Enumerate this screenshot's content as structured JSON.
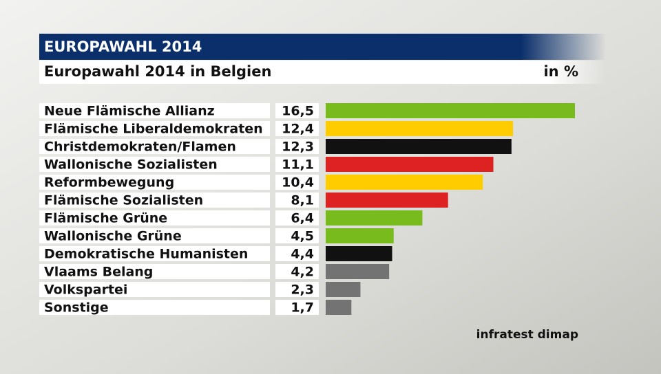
{
  "chart_data": {
    "type": "bar",
    "orientation": "horizontal",
    "header": "EUROPAWAHL 2014",
    "title": "Europawahl 2014 in Belgien",
    "unit": "in %",
    "source": "infratest dimap",
    "categories": [
      "Neue Flämische Allianz",
      "Flämische Liberaldemokraten",
      "Christdemokraten/Flamen",
      "Wallonische Sozialisten",
      "Reformbewegung",
      "Flämische Sozialisten",
      "Flämische Grüne",
      "Wallonische Grüne",
      "Demokratische Humanisten",
      "Vlaams Belang",
      "Volkspartei",
      "Sonstige"
    ],
    "values": [
      16.5,
      12.4,
      12.3,
      11.1,
      10.4,
      8.1,
      6.4,
      4.5,
      4.4,
      4.2,
      2.3,
      1.7
    ],
    "value_labels": [
      "16,5",
      "12,4",
      "12,3",
      "11,1",
      "10,4",
      "8,1",
      "6,4",
      "4,5",
      "4,4",
      "4,2",
      "2,3",
      "1,7"
    ],
    "colors": [
      "#78bb1d",
      "#ffcc00",
      "#111111",
      "#dd2222",
      "#ffcc00",
      "#dd2222",
      "#78bb1d",
      "#78bb1d",
      "#111111",
      "#737373",
      "#737373",
      "#737373"
    ]
  }
}
